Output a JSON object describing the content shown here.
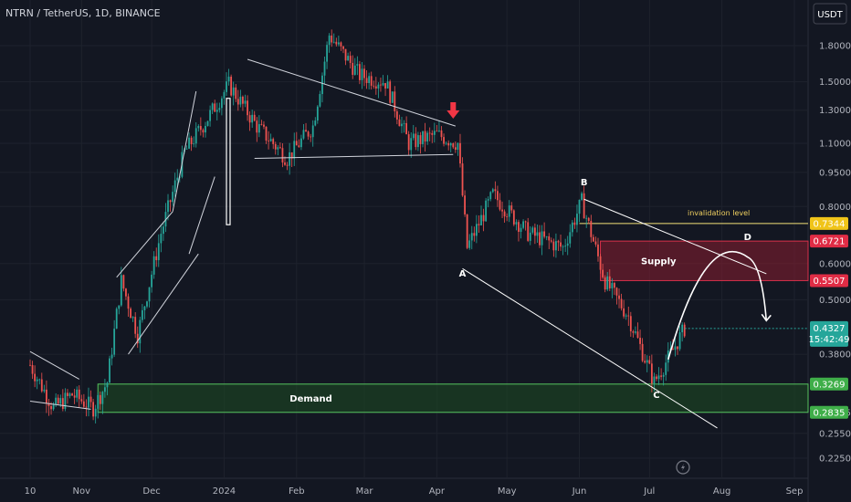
{
  "header": {
    "title": "NTRN / TetherUS, 1D, BINANCE",
    "currency": "USDT"
  },
  "chart_data": {
    "type": "candlestick",
    "symbol": "NTRN / TetherUS",
    "interval": "1D",
    "exchange": "BINANCE",
    "y_scale": "log",
    "ylim": [
      0.2,
      2.2
    ],
    "y_ticks": [
      "1.8000",
      "1.5000",
      "1.3000",
      "1.1000",
      "0.9500",
      "0.8000",
      "0.6000",
      "0.5000",
      "0.3800",
      "0.2835",
      "0.2550",
      "0.2250"
    ],
    "x_ticks": [
      "10",
      "Nov",
      "Dec",
      "2024",
      "Feb",
      "Mar",
      "Apr",
      "May",
      "Jun",
      "Jul",
      "Aug",
      "Sep"
    ],
    "price_path": [
      {
        "date": "2023-10-10",
        "close": 0.36
      },
      {
        "date": "2023-10-20",
        "close": 0.29
      },
      {
        "date": "2023-10-28",
        "close": 0.31
      },
      {
        "date": "2023-11-06",
        "close": 0.29
      },
      {
        "date": "2023-11-12",
        "close": 0.33
      },
      {
        "date": "2023-11-18",
        "close": 0.55
      },
      {
        "date": "2023-11-25",
        "close": 0.42
      },
      {
        "date": "2023-12-05",
        "close": 0.7
      },
      {
        "date": "2023-12-15",
        "close": 1.05
      },
      {
        "date": "2023-12-25",
        "close": 1.25
      },
      {
        "date": "2024-01-03",
        "close": 1.48
      },
      {
        "date": "2024-01-15",
        "close": 1.2
      },
      {
        "date": "2024-01-28",
        "close": 1.02
      },
      {
        "date": "2024-02-08",
        "close": 1.2
      },
      {
        "date": "2024-02-15",
        "close": 1.9
      },
      {
        "date": "2024-02-28",
        "close": 1.55
      },
      {
        "date": "2024-03-10",
        "close": 1.5
      },
      {
        "date": "2024-03-20",
        "close": 1.1
      },
      {
        "date": "2024-04-01",
        "close": 1.15
      },
      {
        "date": "2024-04-10",
        "close": 1.1
      },
      {
        "date": "2024-04-14",
        "close": 0.65
      },
      {
        "date": "2024-04-25",
        "close": 0.85
      },
      {
        "date": "2024-05-10",
        "close": 0.7
      },
      {
        "date": "2024-05-25",
        "close": 0.65
      },
      {
        "date": "2024-06-02",
        "close": 0.82
      },
      {
        "date": "2024-06-12",
        "close": 0.55
      },
      {
        "date": "2024-06-22",
        "close": 0.46
      },
      {
        "date": "2024-07-03",
        "close": 0.33
      },
      {
        "date": "2024-07-10",
        "close": 0.38
      },
      {
        "date": "2024-07-16",
        "close": 0.4327
      }
    ],
    "zones": [
      {
        "label": "Supply",
        "top": 0.6721,
        "bottom": 0.5507,
        "color": "#8b1e2f",
        "border": "#d9304a"
      },
      {
        "label": "Demand",
        "top": 0.3269,
        "bottom": 0.2835,
        "color": "#1d4d23",
        "border": "#57c35f"
      }
    ],
    "levels": [
      {
        "label": "invalidation level",
        "value": 0.7344,
        "color": "#f5e27a"
      }
    ],
    "points": [
      {
        "label": "A",
        "date": "2024-04-12",
        "price": 0.6
      },
      {
        "label": "B",
        "date": "2024-06-03",
        "price": 0.85
      },
      {
        "label": "C",
        "date": "2024-07-04",
        "price": 0.325
      },
      {
        "label": "D",
        "date": "2024-08-12",
        "price": 0.64
      }
    ],
    "price_badges": [
      {
        "value": "0.7344",
        "color": "#f0c419",
        "text_color": "#131722"
      },
      {
        "value": "0.6721",
        "color": "#e02c45",
        "text_color": "#ffffff"
      },
      {
        "value": "0.5507",
        "color": "#e02c45",
        "text_color": "#ffffff"
      },
      {
        "value": "0.3269",
        "color": "#3fae49",
        "text_color": "#ffffff"
      },
      {
        "value": "0.2835",
        "color": "#3fae49",
        "text_color": "#ffffff"
      }
    ],
    "current_price": {
      "value": "0.4327",
      "countdown": "15:42:49",
      "color": "#26a69a"
    },
    "colors": {
      "up": "#26a69a",
      "down": "#ef5350",
      "background": "#131722"
    }
  }
}
